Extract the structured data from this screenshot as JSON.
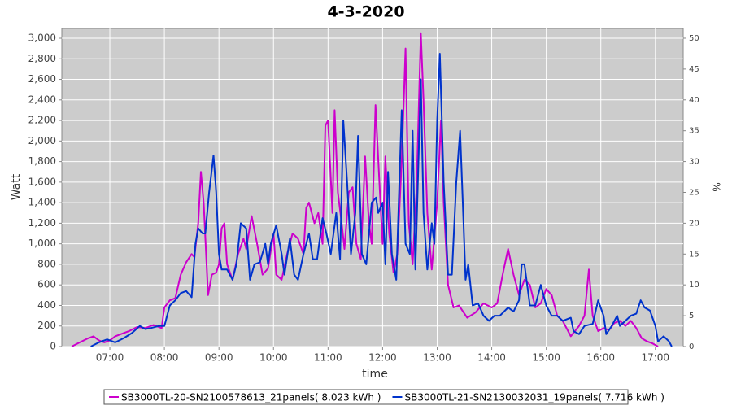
{
  "chart_data": {
    "type": "line",
    "title": "4-3-2020",
    "x_label": "time",
    "y_label": "Watt",
    "y2_label": "%",
    "grid": true,
    "background": "#cccccc",
    "xlim": [
      6.12,
      17.51
    ],
    "xticks": [
      {
        "value": 7,
        "label": "07:00"
      },
      {
        "value": 8,
        "label": "08:00"
      },
      {
        "value": 9,
        "label": "09:00"
      },
      {
        "value": 10,
        "label": "10:00"
      },
      {
        "value": 11,
        "label": "11:00"
      },
      {
        "value": 12,
        "label": "12:00"
      },
      {
        "value": 13,
        "label": "13:00"
      },
      {
        "value": 14,
        "label": "14:00"
      },
      {
        "value": 15,
        "label": "15:00"
      },
      {
        "value": 16,
        "label": "16:00"
      },
      {
        "value": 17,
        "label": "17:00"
      }
    ],
    "ylim": [
      0,
      3095
    ],
    "yticks": [
      0,
      200,
      400,
      600,
      800,
      {
        "value": 1000,
        "label": "1,000"
      },
      {
        "value": 1200,
        "label": "1,200"
      },
      {
        "value": 1400,
        "label": "1,400"
      },
      {
        "value": 1600,
        "label": "1,600"
      },
      {
        "value": 1800,
        "label": "1,800"
      },
      {
        "value": 2000,
        "label": "2,000"
      },
      {
        "value": 2200,
        "label": "2,200"
      },
      {
        "value": 2400,
        "label": "2,400"
      },
      {
        "value": 2600,
        "label": "2,600"
      },
      {
        "value": 2800,
        "label": "2,800"
      },
      {
        "value": 3000,
        "label": "3,000"
      }
    ],
    "y2lim": [
      0,
      51.58
    ],
    "y2ticks": [
      0,
      5,
      10,
      15,
      20,
      25,
      30,
      35,
      40,
      45,
      50
    ],
    "series": [
      {
        "name": "SB3000TL-20-SN2100578613_21panels( 8.023 kWh )",
        "color": "#cc00cc",
        "x": [
          6.3,
          6.45,
          6.6,
          6.7,
          6.8,
          6.9,
          7.0,
          7.1,
          7.2,
          7.35,
          7.5,
          7.65,
          7.8,
          7.95,
          8.0,
          8.1,
          8.2,
          8.3,
          8.4,
          8.5,
          8.55,
          8.62,
          8.67,
          8.72,
          8.8,
          8.87,
          8.95,
          9.0,
          9.05,
          9.1,
          9.15,
          9.25,
          9.35,
          9.45,
          9.5,
          9.6,
          9.7,
          9.8,
          9.9,
          10.0,
          10.05,
          10.15,
          10.25,
          10.35,
          10.45,
          10.55,
          10.6,
          10.65,
          10.75,
          10.82,
          10.9,
          10.95,
          11.0,
          11.08,
          11.12,
          11.18,
          11.25,
          11.3,
          11.38,
          11.45,
          11.52,
          11.6,
          11.68,
          11.75,
          11.8,
          11.87,
          11.95,
          12.0,
          12.05,
          12.12,
          12.2,
          12.27,
          12.35,
          12.42,
          12.48,
          12.55,
          12.62,
          12.7,
          12.75,
          12.82,
          12.9,
          13.0,
          13.07,
          13.12,
          13.2,
          13.3,
          13.4,
          13.55,
          13.7,
          13.85,
          14.0,
          14.1,
          14.2,
          14.3,
          14.4,
          14.5,
          14.6,
          14.7,
          14.8,
          14.9,
          15.0,
          15.1,
          15.2,
          15.3,
          15.45,
          15.6,
          15.7,
          15.78,
          15.85,
          15.95,
          16.05,
          16.15,
          16.25,
          16.35,
          16.45,
          16.55,
          16.65,
          16.75,
          16.85,
          16.95,
          17.05
        ],
        "values": [
          0,
          40,
          80,
          100,
          60,
          40,
          60,
          100,
          120,
          150,
          190,
          180,
          210,
          180,
          380,
          450,
          470,
          700,
          820,
          900,
          870,
          1200,
          1700,
          1400,
          500,
          700,
          720,
          800,
          1150,
          1200,
          800,
          650,
          900,
          1050,
          950,
          1270,
          1000,
          700,
          760,
          1100,
          700,
          650,
          900,
          1100,
          1050,
          900,
          1350,
          1400,
          1200,
          1300,
          1000,
          2150,
          2200,
          1300,
          2300,
          1500,
          1200,
          950,
          1500,
          1550,
          1000,
          850,
          1850,
          1200,
          1000,
          2350,
          1500,
          1000,
          1850,
          1100,
          720,
          900,
          1800,
          2900,
          1200,
          800,
          1500,
          3050,
          2400,
          1300,
          750,
          1400,
          2200,
          1400,
          600,
          380,
          400,
          280,
          330,
          420,
          380,
          420,
          700,
          950,
          700,
          500,
          650,
          600,
          380,
          420,
          560,
          500,
          300,
          250,
          100,
          200,
          300,
          750,
          300,
          150,
          180,
          160,
          230,
          250,
          200,
          250,
          180,
          80,
          50,
          30,
          0
        ]
      },
      {
        "name": "SB3000TL-21-SN2130032031_19panels( 7.716 kWh )",
        "color": "#0033cc",
        "x": [
          6.65,
          6.8,
          6.95,
          7.1,
          7.25,
          7.4,
          7.55,
          7.65,
          7.75,
          7.9,
          8.0,
          8.1,
          8.2,
          8.3,
          8.4,
          8.5,
          8.57,
          8.62,
          8.7,
          8.75,
          8.82,
          8.9,
          8.95,
          9.0,
          9.05,
          9.15,
          9.25,
          9.32,
          9.4,
          9.5,
          9.57,
          9.65,
          9.75,
          9.85,
          9.9,
          9.95,
          10.05,
          10.15,
          10.2,
          10.3,
          10.38,
          10.45,
          10.55,
          10.65,
          10.72,
          10.8,
          10.9,
          10.97,
          11.05,
          11.15,
          11.22,
          11.28,
          11.35,
          11.42,
          11.5,
          11.55,
          11.62,
          11.7,
          11.8,
          11.88,
          11.92,
          12.0,
          12.05,
          12.1,
          12.17,
          12.25,
          12.35,
          12.42,
          12.5,
          12.55,
          12.6,
          12.7,
          12.75,
          12.82,
          12.9,
          12.95,
          13.0,
          13.05,
          13.12,
          13.2,
          13.27,
          13.35,
          13.42,
          13.47,
          13.52,
          13.57,
          13.65,
          13.75,
          13.85,
          13.95,
          14.05,
          14.15,
          14.3,
          14.4,
          14.5,
          14.55,
          14.6,
          14.7,
          14.8,
          14.9,
          15.0,
          15.1,
          15.2,
          15.3,
          15.45,
          15.5,
          15.6,
          15.7,
          15.85,
          15.95,
          16.05,
          16.1,
          16.2,
          16.3,
          16.35,
          16.45,
          16.55,
          16.65,
          16.73,
          16.8,
          16.9,
          17.0,
          17.05,
          17.15,
          17.25,
          17.3
        ],
        "values": [
          0,
          40,
          70,
          40,
          80,
          130,
          200,
          170,
          180,
          200,
          200,
          400,
          450,
          520,
          540,
          480,
          1000,
          1150,
          1100,
          1100,
          1500,
          1860,
          1500,
          900,
          750,
          750,
          650,
          800,
          1200,
          1150,
          650,
          800,
          820,
          1000,
          800,
          1000,
          1180,
          900,
          700,
          1050,
          700,
          650,
          900,
          1100,
          850,
          850,
          1250,
          1100,
          900,
          1300,
          850,
          2200,
          1600,
          900,
          1300,
          2050,
          900,
          800,
          1400,
          1450,
          1300,
          1400,
          800,
          1700,
          900,
          650,
          2300,
          1000,
          900,
          2100,
          750,
          2600,
          1300,
          750,
          1200,
          1000,
          2200,
          2850,
          1600,
          700,
          700,
          1600,
          2100,
          1400,
          650,
          800,
          400,
          420,
          300,
          250,
          300,
          300,
          380,
          340,
          450,
          800,
          800,
          400,
          400,
          600,
          400,
          300,
          300,
          250,
          280,
          150,
          120,
          200,
          220,
          450,
          300,
          120,
          200,
          300,
          200,
          250,
          300,
          320,
          450,
          380,
          350,
          200,
          50,
          100,
          50,
          0
        ]
      }
    ]
  }
}
